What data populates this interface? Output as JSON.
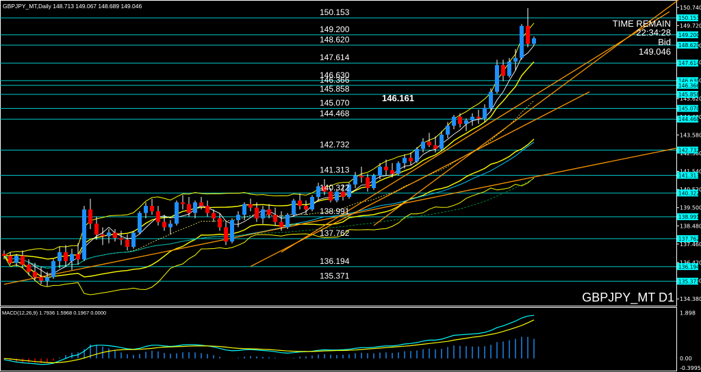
{
  "window": {
    "header_text": "GBPJPY_MT,Daily  148.713 149.067 148.689 149.046",
    "symbol_label": "GBPJPY_MT D1",
    "time_remain_label": "TIME REMAIN",
    "time_remain_value": "22:34:28",
    "bid_label": "Bid",
    "bid_value": "149.046",
    "highlight_level": "146.161",
    "macd_label": "MACD(12,26,9) 1.7936 1.5968 0.1967 0.0000"
  },
  "colors": {
    "background": "#000000",
    "bull_candle": "#1e90ff",
    "bear_candle": "#ff0000",
    "level_line": "#00cccc",
    "level_tag": "#00ffff",
    "bollinger": "#ffff00",
    "trend_line": "#ff9900",
    "ma_short": "#ffffff",
    "ma_mid": "#ffff66",
    "ma_long": "#00ccff",
    "macd_line": "#00ffff",
    "signal_line": "#ffff00",
    "hist_pos": "#1e90ff",
    "hist_neg": "#ff0000"
  },
  "chart_data": {
    "type": "candlestick",
    "y_range": [
      134.0,
      151.0
    ],
    "axis_ticks": [
      "150.740",
      "149.720",
      "148.600",
      "147.660",
      "146.640",
      "145.620",
      "144.600",
      "143.580",
      "142.560",
      "141.540",
      "140.520",
      "139.500",
      "138.480",
      "137.460",
      "136.420",
      "135.400",
      "134.380"
    ],
    "levels": [
      "150.153",
      "149.200",
      "148.620",
      "147.614",
      "146.630",
      "146.366",
      "145.858",
      "145.070",
      "144.468",
      "142.732",
      "141.313",
      "140.322",
      "138.991",
      "137.762",
      "136.194",
      "135.371"
    ],
    "level_tags": [
      "150.153",
      "149.200",
      "148.620",
      "147.614",
      "146.630",
      "146.366",
      "145.858",
      "145.070",
      "144.468",
      "142.732",
      "141.313",
      "140.322",
      "138.991",
      "137.762",
      "136.194",
      "135.371"
    ],
    "candles": [
      [
        136.9,
        137.1,
        136.6,
        136.8
      ],
      [
        136.8,
        137.0,
        136.3,
        136.4
      ],
      [
        136.4,
        136.9,
        136.2,
        136.8
      ],
      [
        136.8,
        137.1,
        136.1,
        136.3
      ],
      [
        136.3,
        136.6,
        135.7,
        135.9
      ],
      [
        135.9,
        136.4,
        135.4,
        135.6
      ],
      [
        135.6,
        136.2,
        135.2,
        135.4
      ],
      [
        135.4,
        135.9,
        135.1,
        135.6
      ],
      [
        135.6,
        136.6,
        135.5,
        136.5
      ],
      [
        136.5,
        137.3,
        136.1,
        137.0
      ],
      [
        137.0,
        137.4,
        136.2,
        136.5
      ],
      [
        136.5,
        137.2,
        136.0,
        136.9
      ],
      [
        136.9,
        137.5,
        136.3,
        136.6
      ],
      [
        136.6,
        139.6,
        136.5,
        139.4
      ],
      [
        139.4,
        140.0,
        138.3,
        138.6
      ],
      [
        138.6,
        139.0,
        137.7,
        138.0
      ],
      [
        138.0,
        138.4,
        137.4,
        137.9
      ],
      [
        137.9,
        138.3,
        137.5,
        138.1
      ],
      [
        138.1,
        138.3,
        137.6,
        137.8
      ],
      [
        137.8,
        138.2,
        137.4,
        137.7
      ],
      [
        137.7,
        138.0,
        137.1,
        137.3
      ],
      [
        137.3,
        138.2,
        137.2,
        138.1
      ],
      [
        138.1,
        139.3,
        138.0,
        139.2
      ],
      [
        139.2,
        139.8,
        138.9,
        139.6
      ],
      [
        139.6,
        140.0,
        139.1,
        139.3
      ],
      [
        139.3,
        139.6,
        138.5,
        138.7
      ],
      [
        138.7,
        139.1,
        138.2,
        138.4
      ],
      [
        138.4,
        138.8,
        138.0,
        138.6
      ],
      [
        138.6,
        139.9,
        138.5,
        139.8
      ],
      [
        139.8,
        140.2,
        139.4,
        139.7
      ],
      [
        139.7,
        140.1,
        139.0,
        139.2
      ],
      [
        139.2,
        139.9,
        138.9,
        139.8
      ],
      [
        139.8,
        140.1,
        139.4,
        139.6
      ],
      [
        139.6,
        139.9,
        139.0,
        139.2
      ],
      [
        139.2,
        139.4,
        138.7,
        138.9
      ],
      [
        138.9,
        139.2,
        138.2,
        138.4
      ],
      [
        138.4,
        138.7,
        137.4,
        137.6
      ],
      [
        137.6,
        138.9,
        137.5,
        138.8
      ],
      [
        138.8,
        139.3,
        138.4,
        139.1
      ],
      [
        139.1,
        139.8,
        138.8,
        139.7
      ],
      [
        139.7,
        140.0,
        139.3,
        139.5
      ],
      [
        139.5,
        139.8,
        138.7,
        138.9
      ],
      [
        138.9,
        139.6,
        138.6,
        139.4
      ],
      [
        139.4,
        139.7,
        138.9,
        139.1
      ],
      [
        139.1,
        139.5,
        138.5,
        138.7
      ],
      [
        138.7,
        139.3,
        138.2,
        138.4
      ],
      [
        138.4,
        139.2,
        138.3,
        139.1
      ],
      [
        139.1,
        140.0,
        139.0,
        139.9
      ],
      [
        139.9,
        140.3,
        139.4,
        139.6
      ],
      [
        139.6,
        139.9,
        139.1,
        139.4
      ],
      [
        139.4,
        140.2,
        139.3,
        140.1
      ],
      [
        140.1,
        140.9,
        139.9,
        140.7
      ],
      [
        140.7,
        141.1,
        140.2,
        140.4
      ],
      [
        140.4,
        140.6,
        139.8,
        139.9
      ],
      [
        139.9,
        140.5,
        139.8,
        140.4
      ],
      [
        140.4,
        140.8,
        139.9,
        140.1
      ],
      [
        140.1,
        140.9,
        140.0,
        140.8
      ],
      [
        140.8,
        141.5,
        140.6,
        141.3
      ],
      [
        141.3,
        141.8,
        140.9,
        141.2
      ],
      [
        141.2,
        141.4,
        140.4,
        140.6
      ],
      [
        140.6,
        141.4,
        140.5,
        141.3
      ],
      [
        141.3,
        142.0,
        141.1,
        141.8
      ],
      [
        141.8,
        142.2,
        141.3,
        141.6
      ],
      [
        141.6,
        142.0,
        141.2,
        141.4
      ],
      [
        141.4,
        142.1,
        141.3,
        142.0
      ],
      [
        142.0,
        142.5,
        141.7,
        142.3
      ],
      [
        142.3,
        142.6,
        141.9,
        142.1
      ],
      [
        142.1,
        142.9,
        142.0,
        142.8
      ],
      [
        142.8,
        143.4,
        142.6,
        143.2
      ],
      [
        143.2,
        143.7,
        142.9,
        143.0
      ],
      [
        143.0,
        143.5,
        142.6,
        142.8
      ],
      [
        142.8,
        143.8,
        142.7,
        143.6
      ],
      [
        143.6,
        144.3,
        143.4,
        144.1
      ],
      [
        144.1,
        144.7,
        143.9,
        144.6
      ],
      [
        144.6,
        144.8,
        144.0,
        144.2
      ],
      [
        144.2,
        144.5,
        143.8,
        144.4
      ],
      [
        144.4,
        144.8,
        144.1,
        144.6
      ],
      [
        144.6,
        145.0,
        144.2,
        144.5
      ],
      [
        144.5,
        145.3,
        144.3,
        145.1
      ],
      [
        145.1,
        146.2,
        144.9,
        146.0
      ],
      [
        146.0,
        147.8,
        145.9,
        147.5
      ],
      [
        147.5,
        147.8,
        146.6,
        146.9
      ],
      [
        146.9,
        147.9,
        146.8,
        147.7
      ],
      [
        147.7,
        148.4,
        147.2,
        147.9
      ],
      [
        147.9,
        149.8,
        147.8,
        149.7
      ],
      [
        149.7,
        150.7,
        148.5,
        148.7
      ],
      [
        148.7,
        149.1,
        148.6,
        149.0
      ]
    ],
    "macd": {
      "y_range": [
        -0.45,
        2.05
      ],
      "labels": [
        "1.898",
        "0.00",
        "-0.3995"
      ],
      "macd_line": [
        -0.05,
        -0.1,
        -0.15,
        -0.18,
        -0.2,
        -0.22,
        -0.25,
        -0.24,
        -0.2,
        -0.1,
        0.0,
        0.1,
        0.15,
        0.3,
        0.5,
        0.55,
        0.55,
        0.53,
        0.5,
        0.45,
        0.4,
        0.38,
        0.42,
        0.5,
        0.55,
        0.55,
        0.52,
        0.5,
        0.52,
        0.56,
        0.57,
        0.57,
        0.55,
        0.52,
        0.48,
        0.42,
        0.35,
        0.32,
        0.33,
        0.36,
        0.37,
        0.35,
        0.33,
        0.31,
        0.28,
        0.24,
        0.22,
        0.24,
        0.27,
        0.28,
        0.3,
        0.34,
        0.36,
        0.35,
        0.35,
        0.36,
        0.38,
        0.42,
        0.45,
        0.45,
        0.46,
        0.5,
        0.52,
        0.52,
        0.55,
        0.6,
        0.62,
        0.66,
        0.72,
        0.76,
        0.76,
        0.8,
        0.88,
        0.96,
        0.98,
        1.0,
        1.02,
        1.04,
        1.08,
        1.16,
        1.28,
        1.35,
        1.45,
        1.55,
        1.68,
        1.76,
        1.79
      ],
      "signal_line": [
        0.0,
        -0.02,
        -0.05,
        -0.08,
        -0.1,
        -0.13,
        -0.15,
        -0.17,
        -0.18,
        -0.17,
        -0.14,
        -0.1,
        -0.05,
        0.02,
        0.1,
        0.18,
        0.25,
        0.3,
        0.34,
        0.36,
        0.37,
        0.37,
        0.38,
        0.4,
        0.42,
        0.45,
        0.47,
        0.48,
        0.49,
        0.5,
        0.51,
        0.52,
        0.52,
        0.52,
        0.51,
        0.5,
        0.47,
        0.44,
        0.42,
        0.41,
        0.4,
        0.39,
        0.38,
        0.37,
        0.35,
        0.33,
        0.31,
        0.3,
        0.29,
        0.29,
        0.29,
        0.3,
        0.31,
        0.32,
        0.33,
        0.33,
        0.34,
        0.35,
        0.37,
        0.39,
        0.41,
        0.43,
        0.45,
        0.47,
        0.49,
        0.51,
        0.53,
        0.56,
        0.59,
        0.62,
        0.65,
        0.68,
        0.71,
        0.76,
        0.8,
        0.84,
        0.88,
        0.91,
        0.95,
        1.0,
        1.05,
        1.12,
        1.2,
        1.28,
        1.37,
        1.48,
        1.6
      ]
    }
  }
}
